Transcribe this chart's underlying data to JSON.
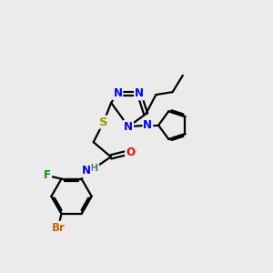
{
  "bg_color": "#ebebeb",
  "atom_colors": {
    "N": "#0000ff",
    "S": "#999900",
    "O": "#ff0000",
    "F": "#009900",
    "Br": "#cc6600",
    "C": "#000000",
    "H": "#557777"
  },
  "bond_color": "#000000",
  "bond_width": 1.6,
  "font_size": 8.5
}
